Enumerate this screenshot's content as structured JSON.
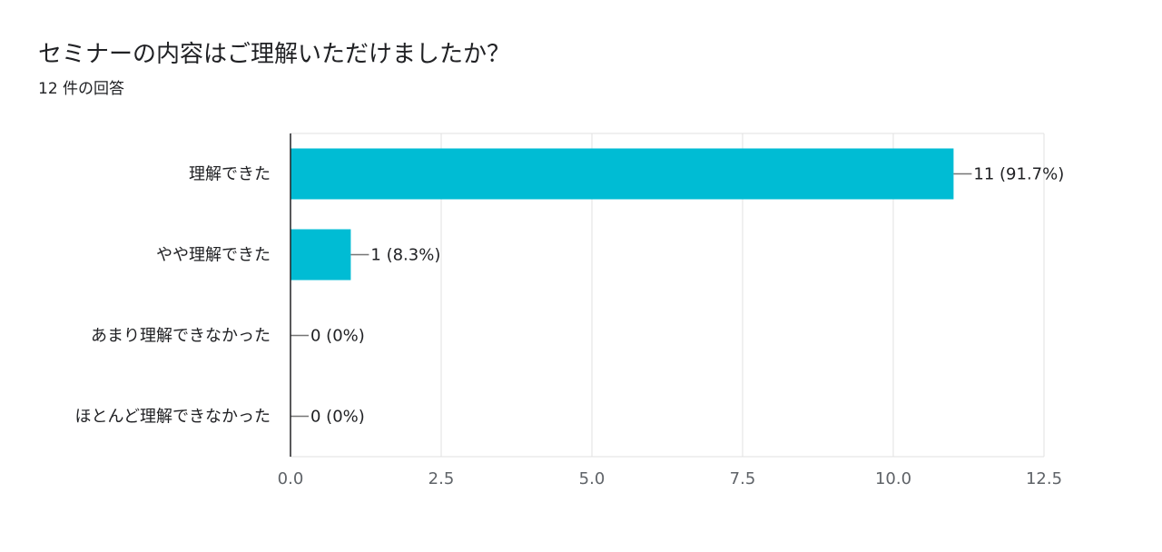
{
  "header": {
    "title": "セミナーの内容はご理解いただけましたか？",
    "subtitle": "12 件の回答"
  },
  "colors": {
    "bar": "#00bcd4",
    "grid": "#e0e0e0",
    "axis": "#202124",
    "leader": "#757575"
  },
  "chart_data": {
    "type": "bar",
    "orientation": "horizontal",
    "categories": [
      "理解できた",
      "やや理解できた",
      "あまり理解できなかった",
      "ほとんど理解できなかった"
    ],
    "values": [
      11,
      1,
      0,
      0
    ],
    "data_labels": [
      "11 (91.7%)",
      "1 (8.3%)",
      "0 (0%)",
      "0 (0%)"
    ],
    "xlim": [
      0,
      12.5
    ],
    "xticks": [
      0,
      2.5,
      5,
      7.5,
      10,
      12.5
    ],
    "xtick_labels": [
      "0.0",
      "2.5",
      "5.0",
      "7.5",
      "10.0",
      "12.5"
    ],
    "grid": true,
    "legend": "none"
  }
}
